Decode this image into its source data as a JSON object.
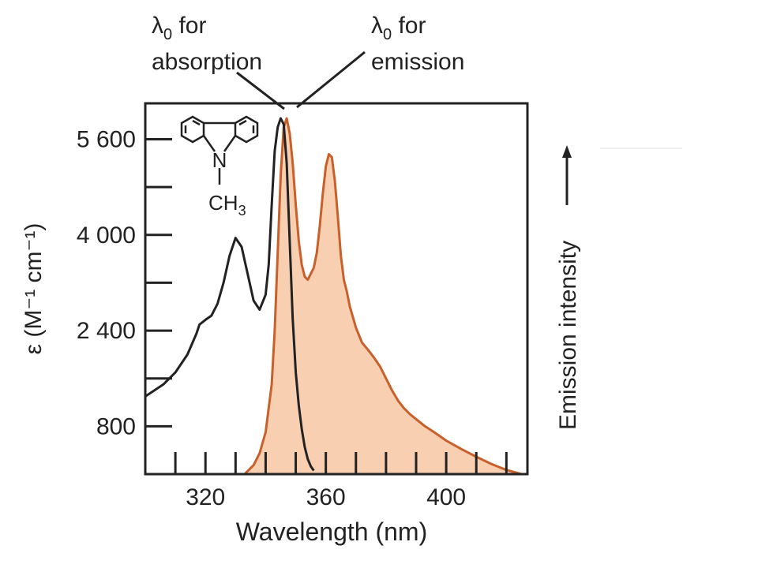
{
  "chart_data": {
    "type": "line",
    "xlabel": "Wavelength (nm)",
    "ylabel": "ε (M⁻¹ cm⁻¹)",
    "y2label": "Emission intensity",
    "xlim": [
      300,
      427
    ],
    "ylim": [
      0,
      6200
    ],
    "xticks_labeled": [
      "320",
      "360",
      "400"
    ],
    "xtick_values": [
      320,
      360,
      400
    ],
    "yticks_labeled": [
      "800",
      "2 400",
      "4 000",
      "5 600"
    ],
    "ytick_values": [
      800,
      2400,
      4000,
      5600
    ],
    "yticks_minor": [
      1600,
      3200,
      4800
    ],
    "xticks_minor": [
      310,
      320,
      330,
      340,
      350,
      360,
      370,
      380,
      390,
      400,
      410,
      420
    ],
    "series": [
      {
        "name": "absorption",
        "color": "#222222",
        "fill": false,
        "x": [
          300,
          306,
          310,
          314,
          317,
          318,
          320,
          322,
          324,
          326,
          328,
          330,
          332,
          334,
          336,
          338,
          340,
          341,
          342,
          343,
          344,
          345,
          346,
          347,
          348,
          349,
          350,
          351,
          352,
          353,
          354,
          355,
          356
        ],
        "y": [
          1300,
          1500,
          1700,
          2000,
          2350,
          2500,
          2580,
          2650,
          2850,
          3200,
          3650,
          3950,
          3800,
          3350,
          2900,
          2750,
          3000,
          3500,
          4500,
          5400,
          5800,
          5950,
          5850,
          5200,
          3900,
          2600,
          1700,
          1150,
          750,
          450,
          250,
          130,
          60
        ]
      },
      {
        "name": "emission",
        "color": "#c8602c",
        "fill": true,
        "fill_color": "#f8cfb0",
        "x": [
          333,
          336,
          338,
          340,
          342,
          343,
          344,
          345,
          346,
          347,
          348,
          349,
          350,
          351,
          352,
          353,
          354,
          355,
          356,
          357,
          358,
          359,
          360,
          361,
          362,
          363,
          364,
          365,
          366,
          367,
          368,
          370,
          372,
          374,
          376,
          378,
          380,
          382,
          384,
          386,
          388,
          390,
          393,
          396,
          400,
          405,
          410,
          415,
          420,
          425
        ],
        "y": [
          0,
          150,
          350,
          700,
          1500,
          2400,
          3700,
          5000,
          5800,
          5950,
          5700,
          5200,
          4500,
          3900,
          3500,
          3300,
          3250,
          3350,
          3450,
          3700,
          4150,
          4700,
          5150,
          5350,
          5300,
          4900,
          4300,
          3650,
          3250,
          3050,
          2800,
          2450,
          2200,
          2080,
          1950,
          1800,
          1600,
          1400,
          1230,
          1100,
          1000,
          920,
          800,
          700,
          560,
          420,
          290,
          170,
          70,
          0
        ]
      }
    ],
    "annotations": [
      {
        "id": "abs",
        "line1": "λ",
        "sub": "0",
        "line1_rest": " for",
        "line2": "absorption"
      },
      {
        "id": "em",
        "line1": "λ",
        "sub": "0",
        "line1_rest": " for",
        "line2": "emission"
      }
    ],
    "molecule": {
      "atom_n": "N",
      "methyl": "CH",
      "methyl_sub": "3"
    },
    "grid": false,
    "legend": "none"
  }
}
